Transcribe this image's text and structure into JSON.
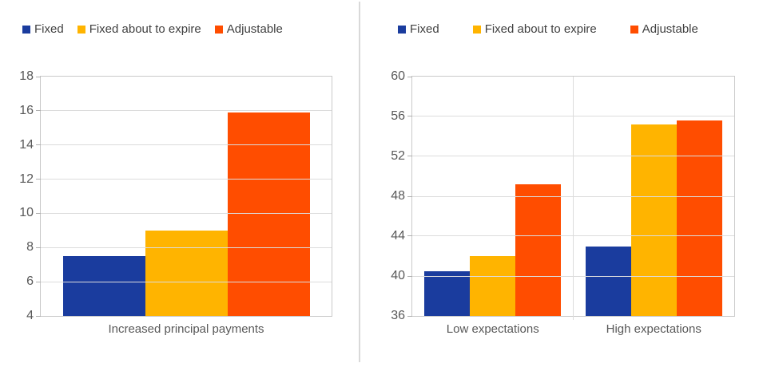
{
  "colors": {
    "fixed": "#1A3C9E",
    "fixed_about_to_expire": "#FFB400",
    "adjustable": "#FF4D00",
    "axis_text": "#595959",
    "legend_text": "#404040",
    "gridline": "#DCDCDC",
    "plot_border": "#C9C9C9",
    "panel_divider": "#D9D9D9"
  },
  "legend_labels": [
    "Fixed",
    "Fixed about to expire",
    "Adjustable"
  ],
  "chart_data": [
    {
      "type": "bar",
      "title": "",
      "categories": [
        "Increased principal payments"
      ],
      "series": [
        {
          "name": "Fixed",
          "color": "#1A3C9E",
          "values": [
            7.5
          ]
        },
        {
          "name": "Fixed about to expire",
          "color": "#FFB400",
          "values": [
            9.0
          ]
        },
        {
          "name": "Adjustable",
          "color": "#FF4D00",
          "values": [
            15.9
          ]
        }
      ],
      "ylim": [
        4,
        18
      ],
      "yticks": [
        4,
        6,
        8,
        10,
        12,
        14,
        16,
        18
      ],
      "xlabel": "",
      "ylabel": "",
      "grid": "horizontal",
      "legend_position": "top"
    },
    {
      "type": "bar",
      "title": "",
      "categories": [
        "Low expectations",
        "High expectations"
      ],
      "series": [
        {
          "name": "Fixed",
          "color": "#1A3C9E",
          "values": [
            40.5,
            43.0
          ]
        },
        {
          "name": "Fixed about to expire",
          "color": "#FFB400",
          "values": [
            42.0,
            55.2
          ]
        },
        {
          "name": "Adjustable",
          "color": "#FF4D00",
          "values": [
            49.2,
            55.6
          ]
        }
      ],
      "ylim": [
        36,
        60
      ],
      "yticks": [
        36,
        40,
        44,
        48,
        52,
        56,
        60
      ],
      "xlabel": "",
      "ylabel": "",
      "grid": "horizontal",
      "legend_position": "top"
    }
  ]
}
